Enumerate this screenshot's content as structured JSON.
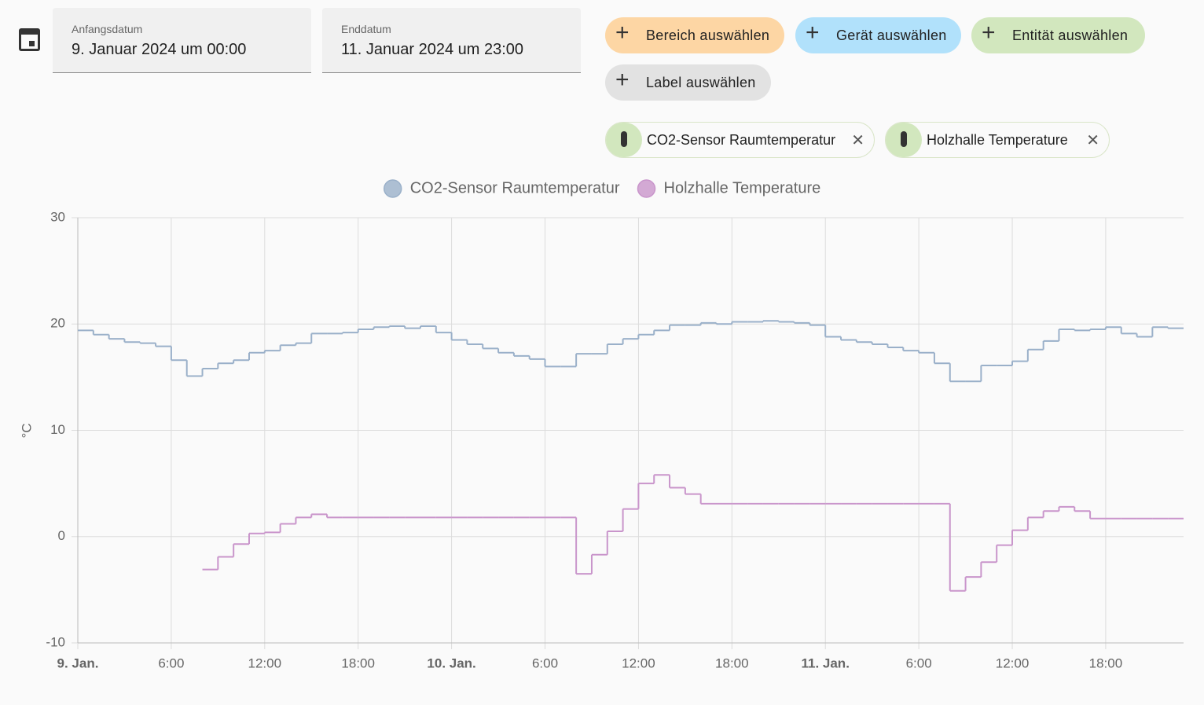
{
  "date_range": {
    "start_label": "Anfangsdatum",
    "start_value": "9. Januar 2024 um 00:00",
    "end_label": "Enddatum",
    "end_value": "11. Januar 2024 um 23:00"
  },
  "target_buttons": [
    "Bereich auswählen",
    "Gerät auswählen",
    "Entität auswählen",
    "Label auswählen"
  ],
  "selected_entities": [
    "CO2-Sensor Raumtemperatur",
    "Holzhalle Temperature"
  ],
  "chart_data": {
    "type": "line",
    "step": true,
    "y_label": "°C",
    "x": [
      0,
      1,
      2,
      3,
      4,
      5,
      6,
      7,
      8,
      9,
      10,
      11,
      12,
      13,
      14,
      15,
      16,
      17,
      18,
      19,
      20,
      21,
      22,
      23,
      24,
      25,
      26,
      27,
      28,
      29,
      30,
      31,
      32,
      33,
      34,
      35,
      36,
      37,
      38,
      39,
      40,
      41,
      42,
      43,
      44,
      45,
      46,
      47,
      48,
      49,
      50,
      51,
      52,
      53,
      54,
      55,
      56,
      57,
      58,
      59,
      60,
      61,
      62,
      63,
      64,
      65,
      66,
      67,
      68,
      69,
      70
    ],
    "series": [
      {
        "name": "CO2-Sensor Raumtemperatur",
        "color": "#9ab0c9",
        "values": [
          19.4,
          19.0,
          18.6,
          18.3,
          18.2,
          17.9,
          16.6,
          15.1,
          15.8,
          16.3,
          16.6,
          17.3,
          17.5,
          18.0,
          18.2,
          19.1,
          19.1,
          19.2,
          19.5,
          19.7,
          19.8,
          19.6,
          19.8,
          19.2,
          18.5,
          18.1,
          17.7,
          17.3,
          17.0,
          16.7,
          16.0,
          16.0,
          17.2,
          17.2,
          18.1,
          18.6,
          19.0,
          19.4,
          19.9,
          19.9,
          20.1,
          20.0,
          20.2,
          20.2,
          20.3,
          20.2,
          20.1,
          19.9,
          18.8,
          18.5,
          18.3,
          18.1,
          17.8,
          17.5,
          17.3,
          16.3,
          14.6,
          14.6,
          16.1,
          16.1,
          16.5,
          17.6,
          18.4,
          19.5,
          19.4,
          19.5,
          19.7,
          19.1,
          18.8,
          19.7,
          19.6
        ]
      },
      {
        "name": "Holzhalle Temperature",
        "color": "#c995cb",
        "values": [
          null,
          null,
          null,
          null,
          null,
          null,
          null,
          null,
          -3.1,
          -1.9,
          -0.7,
          0.3,
          0.4,
          1.2,
          1.8,
          2.1,
          1.8,
          1.8,
          1.8,
          1.8,
          1.8,
          1.8,
          1.8,
          1.8,
          1.8,
          1.8,
          1.8,
          1.8,
          1.8,
          1.8,
          1.8,
          1.8,
          -3.5,
          -1.7,
          0.5,
          2.6,
          5.0,
          5.8,
          4.6,
          4.0,
          3.1,
          3.1,
          3.1,
          3.1,
          3.1,
          3.1,
          3.1,
          3.1,
          3.1,
          3.1,
          3.1,
          3.1,
          3.1,
          3.1,
          3.1,
          3.1,
          -5.1,
          -3.8,
          -2.4,
          -0.8,
          0.6,
          1.8,
          2.4,
          2.8,
          2.4,
          1.7,
          1.7,
          1.7,
          1.7,
          1.7,
          1.7
        ]
      }
    ],
    "xlim": [
      0,
      71
    ],
    "ylim": [
      -10,
      30
    ],
    "yticks": [
      -10,
      0,
      10,
      20,
      30
    ],
    "xticks": [
      {
        "value": 0,
        "label": "9. Jan."
      },
      {
        "value": 6,
        "label": "6:00"
      },
      {
        "value": 12,
        "label": "12:00"
      },
      {
        "value": 18,
        "label": "18:00"
      },
      {
        "value": 24,
        "label": "10. Jan."
      },
      {
        "value": 30,
        "label": "6:00"
      },
      {
        "value": 36,
        "label": "12:00"
      },
      {
        "value": 42,
        "label": "18:00"
      },
      {
        "value": 48,
        "label": "11. Jan."
      },
      {
        "value": 54,
        "label": "6:00"
      },
      {
        "value": 60,
        "label": "12:00"
      },
      {
        "value": 66,
        "label": "18:00"
      }
    ],
    "grid": true
  }
}
